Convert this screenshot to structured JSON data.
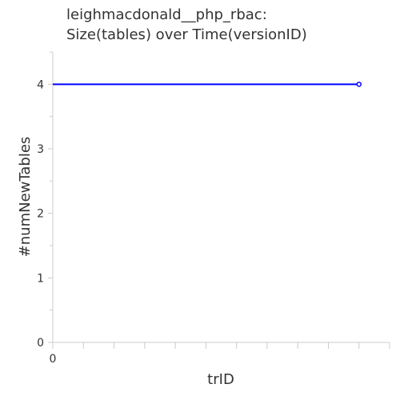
{
  "chart_data": {
    "type": "line",
    "title_lines": [
      "leighmacdonald__php_rbac:",
      "Size(tables) over Time(versionID)"
    ],
    "xlabel": "trID",
    "ylabel": "#numNewTables",
    "x_tick_labels": [
      "0"
    ],
    "y_tick_labels": [
      "0",
      "1",
      "2",
      "3",
      "4"
    ],
    "xlim": [
      0,
      11
    ],
    "ylim": [
      0,
      4.5
    ],
    "y_ticks": [
      0,
      1,
      2,
      3,
      4
    ],
    "series": [
      {
        "x": [
          0,
          10
        ],
        "y": [
          4,
          4
        ],
        "color": "#0000ff"
      }
    ],
    "grid": false,
    "colors": {
      "line": "#0000ff",
      "axis": "#cccccc",
      "text": "#333333"
    }
  }
}
